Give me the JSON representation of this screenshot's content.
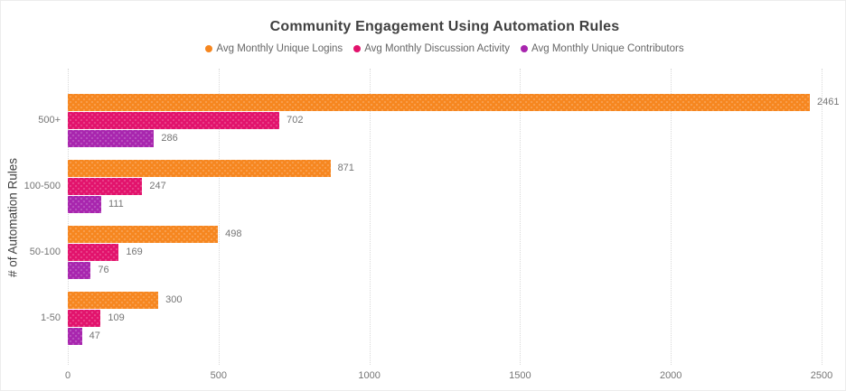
{
  "chart_data": {
    "type": "bar",
    "orientation": "horizontal",
    "title": "Community Engagement Using Automation Rules",
    "xlabel": "",
    "ylabel": "# of Automation Rules",
    "categories": [
      "500+",
      "100-500",
      "50-100",
      "1-50"
    ],
    "series": [
      {
        "name": "Avg Monthly Unique Logins",
        "color": "#F6861F",
        "values": [
          2461,
          871,
          498,
          300
        ]
      },
      {
        "name": "Avg Monthly Discussion Activity",
        "color": "#E2126C",
        "values": [
          702,
          247,
          169,
          109
        ]
      },
      {
        "name": "Avg Monthly Unique Contributors",
        "color": "#A825AE",
        "values": [
          286,
          111,
          76,
          47
        ]
      }
    ],
    "xlim": [
      0,
      2500
    ],
    "xticks": [
      0,
      500,
      1000,
      1500,
      2000,
      2500
    ],
    "grid": "vertical-dotted",
    "legend_position": "top-center",
    "value_labels": true,
    "colors": {
      "gridline": "#d9d9d9",
      "tick_label": "#757575",
      "category_label": "#757575",
      "value_label": "#757575",
      "title": "#404040",
      "axis_title": "#3f3f3f",
      "legend_text": "#666666"
    }
  }
}
